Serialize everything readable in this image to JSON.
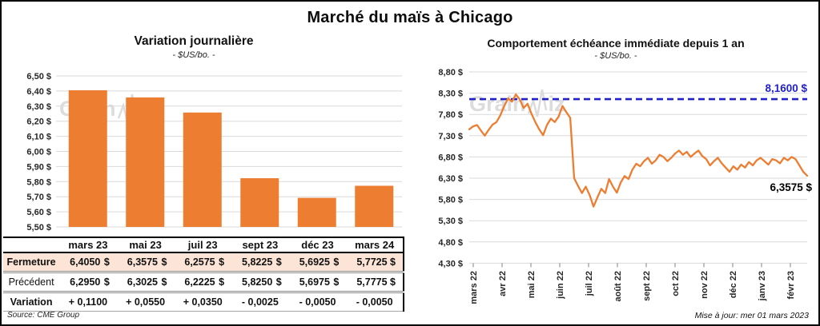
{
  "title": "Marché du maïs à Chicago",
  "watermark": {
    "prefix": "Grain",
    "suffix": "iz"
  },
  "footer": {
    "source": "Source: CME Group",
    "updated": "Mise à jour: mer 01 mars 2023"
  },
  "table": {
    "currency": "$",
    "columns": [
      "mars 23",
      "mai 23",
      "juil 23",
      "sept 23",
      "déc 23",
      "mars 24"
    ],
    "rows": {
      "fermeture": {
        "label": "Fermeture",
        "values": [
          "6,4050",
          "6,3575",
          "6,2575",
          "5,8225",
          "5,6925",
          "5,7725"
        ]
      },
      "precedent": {
        "label": "Précédent",
        "values": [
          "6,2950",
          "6,3025",
          "6,2225",
          "5,8250",
          "5,6975",
          "5,7775"
        ]
      },
      "variation": {
        "label": "Variation",
        "values": [
          "+ 0,1100",
          "+ 0,0550",
          "+ 0,0350",
          "- 0,0025",
          "- 0,0050",
          "- 0,0050"
        ]
      }
    }
  },
  "chart_data": [
    {
      "type": "bar",
      "title": "Variation  journalière",
      "subtitle": "- $US/bo. -",
      "unit": "$US/bo.",
      "categories": [
        "mars 23",
        "mai 23",
        "juil 23",
        "sept 23",
        "déc 23",
        "mars 24"
      ],
      "values": [
        6.405,
        6.3575,
        6.2575,
        5.8225,
        5.6925,
        5.7725
      ],
      "ylim": [
        5.5,
        6.5
      ],
      "ytick_step": 0.1,
      "ytick_labels": [
        "6,50 $",
        "6,40 $",
        "6,30 $",
        "6,20 $",
        "6,10 $",
        "6,00 $",
        "5,90 $",
        "5,80 $",
        "5,70 $",
        "5,60 $",
        "5,50 $"
      ],
      "bar_color": "#ED7D31",
      "grid": true,
      "legend": false
    },
    {
      "type": "line",
      "title": "Comportement  échéance  immédiate  depuis 1 an",
      "subtitle": "- $US/bo. -",
      "unit": "$US/bo.",
      "x_labels": [
        "mars 22",
        "avr 22",
        "mai 22",
        "juin 22",
        "juil 22",
        "août 22",
        "sept 22",
        "oct 22",
        "nov 22",
        "déc 22",
        "janv 23",
        "févr 23"
      ],
      "values": [
        7.45,
        7.52,
        7.55,
        7.42,
        7.3,
        7.44,
        7.56,
        7.62,
        7.78,
        8.0,
        8.18,
        8.1,
        8.27,
        8.15,
        7.95,
        8.05,
        7.82,
        7.62,
        7.45,
        7.31,
        7.55,
        7.7,
        7.62,
        7.75,
        8.0,
        7.85,
        7.72,
        6.3,
        6.12,
        5.95,
        6.1,
        5.9,
        5.63,
        5.85,
        6.05,
        5.95,
        6.28,
        6.1,
        5.96,
        6.2,
        6.35,
        6.28,
        6.5,
        6.64,
        6.58,
        6.7,
        6.78,
        6.64,
        6.72,
        6.85,
        6.8,
        6.7,
        6.78,
        6.88,
        6.95,
        6.85,
        6.92,
        6.8,
        6.88,
        6.95,
        6.82,
        6.75,
        6.6,
        6.7,
        6.78,
        6.65,
        6.55,
        6.45,
        6.58,
        6.5,
        6.62,
        6.55,
        6.68,
        6.6,
        6.72,
        6.78,
        6.7,
        6.62,
        6.75,
        6.72,
        6.65,
        6.78,
        6.72,
        6.8,
        6.75,
        6.6,
        6.45,
        6.3575
      ],
      "ylim": [
        4.3,
        8.8
      ],
      "ytick_step": 0.5,
      "ytick_labels": [
        "8,80 $",
        "8,30 $",
        "7,80 $",
        "7,30 $",
        "6,80 $",
        "6,30 $",
        "5,80 $",
        "5,30 $",
        "4,80 $",
        "4,30 $"
      ],
      "line_color": "#ED7D31",
      "reference_line": {
        "value": 8.16,
        "label": "8,1600 $",
        "color": "#2121CC",
        "style": "dashed"
      },
      "last_value": 6.3575,
      "last_point_label": "6,3575 $",
      "grid": true,
      "legend": false
    }
  ]
}
